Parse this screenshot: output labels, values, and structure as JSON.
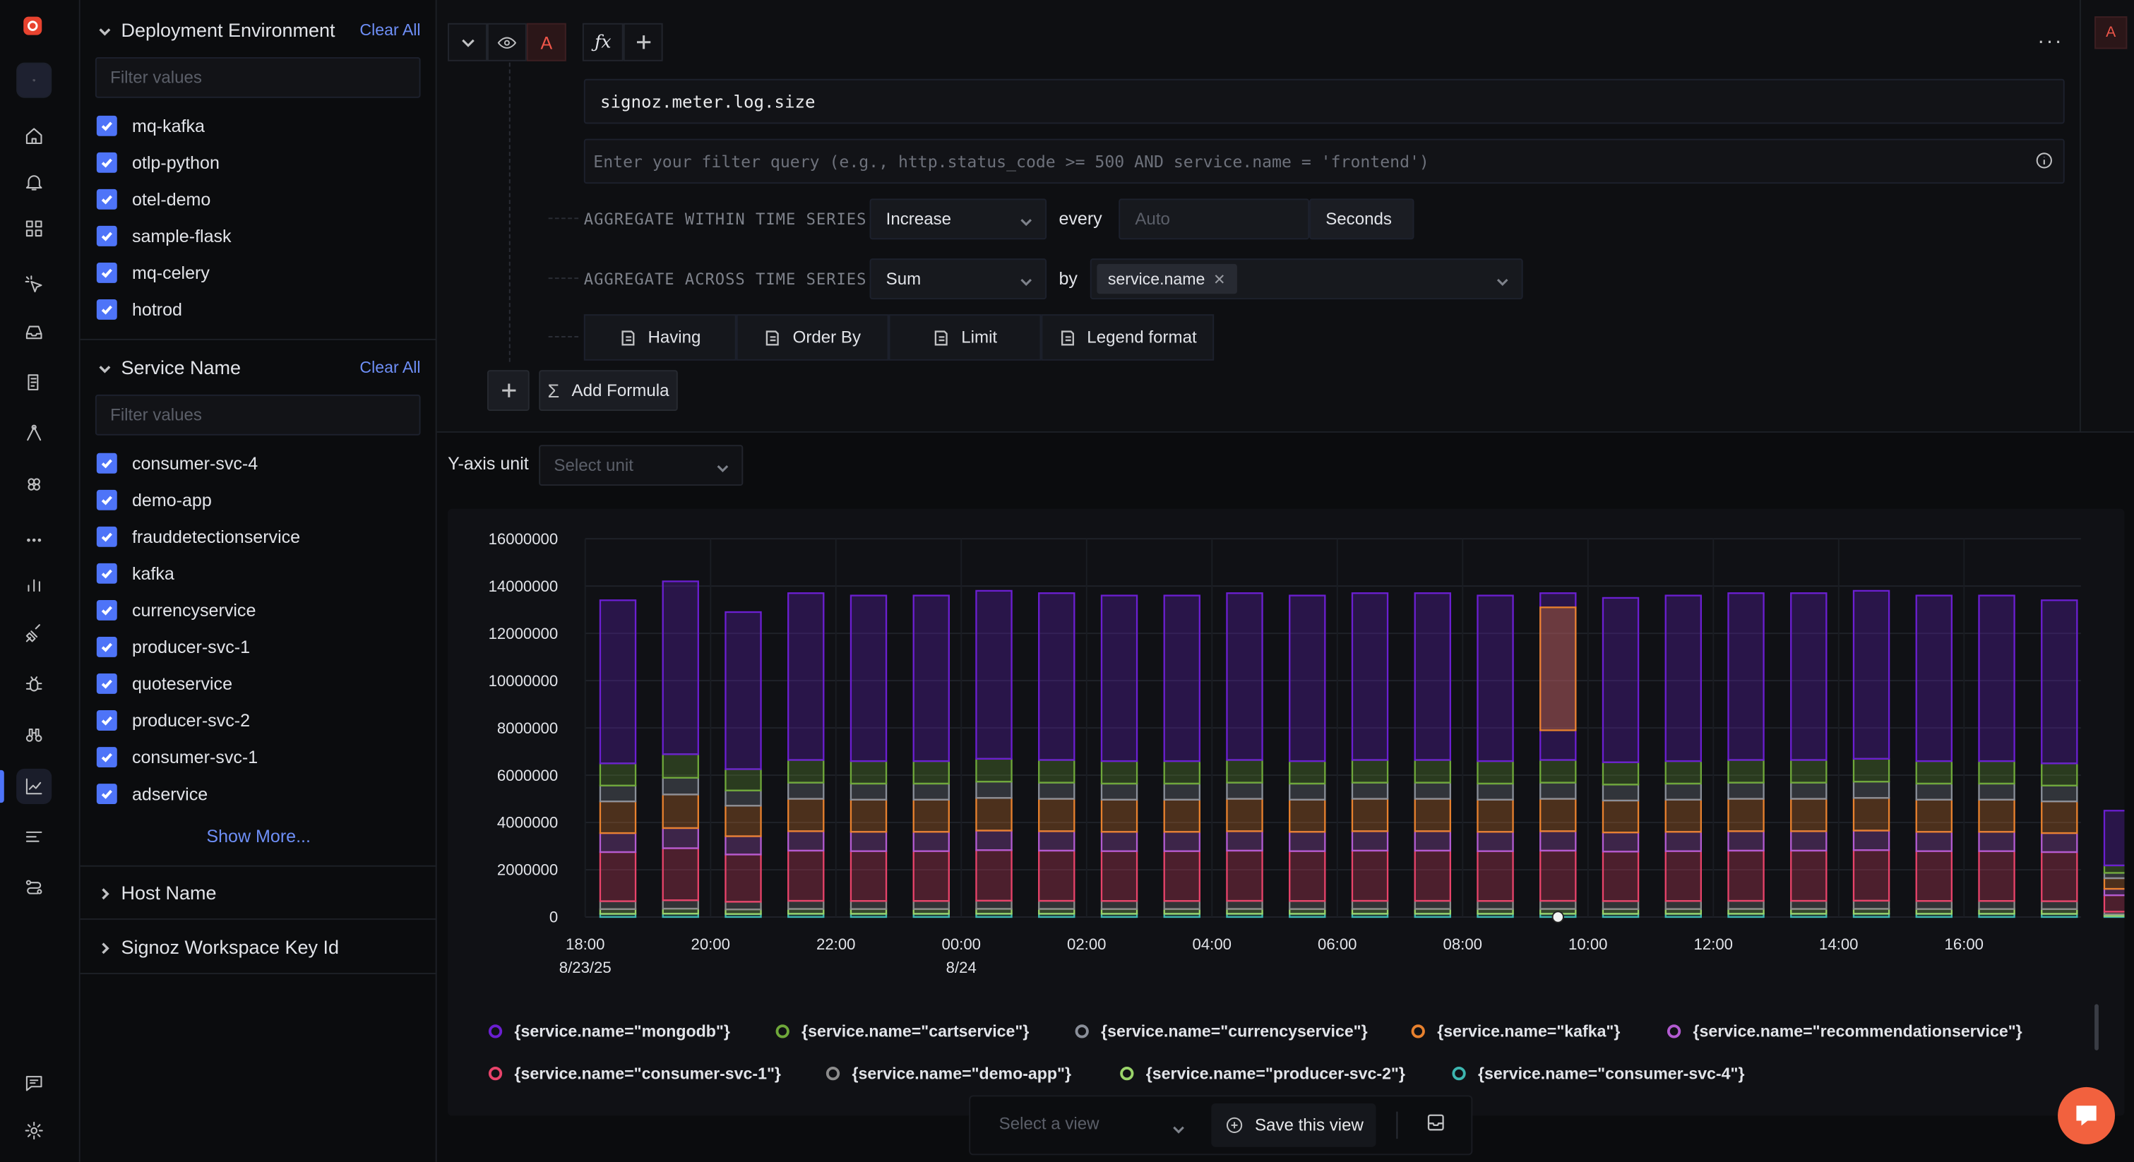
{
  "nav": {
    "items": [
      "cube-icon",
      "home-icon",
      "bell-icon",
      "grid-icon",
      "pointer-icon",
      "inbox-icon",
      "logs-icon",
      "route-icon",
      "hexagons-icon",
      "more-icon",
      "bar-chart-icon",
      "plug-icon",
      "bug-icon",
      "binoculars-icon",
      "chart-icon",
      "list-icon",
      "flow-icon"
    ],
    "bottom": [
      "chat-icon",
      "gear-icon"
    ]
  },
  "filters": {
    "deployment": {
      "title": "Deployment Environment",
      "clear": "Clear All",
      "placeholder": "Filter values",
      "items": [
        "mq-kafka",
        "otlp-python",
        "otel-demo",
        "sample-flask",
        "mq-celery",
        "hotrod"
      ]
    },
    "service": {
      "title": "Service Name",
      "clear": "Clear All",
      "placeholder": "Filter values",
      "items": [
        "consumer-svc-4",
        "demo-app",
        "frauddetectionservice",
        "kafka",
        "currencyservice",
        "producer-svc-1",
        "quoteservice",
        "producer-svc-2",
        "consumer-svc-1",
        "adservice"
      ],
      "show_more": "Show More..."
    },
    "host": {
      "title": "Host Name"
    },
    "workspace": {
      "title": "Signoz Workspace Key Id"
    }
  },
  "query": {
    "label": "A",
    "corner_label": "A",
    "metric": "signoz.meter.log.size",
    "filter_placeholder": "Enter your filter query (e.g., http.status_code >= 500 AND service.name = 'frontend')",
    "agg_within_label": "AGGREGATE WITHIN TIME SERIES",
    "agg_within_value": "Increase",
    "every_label": "every",
    "every_placeholder": "Auto",
    "every_unit": "Seconds",
    "agg_across_label": "AGGREGATE ACROSS TIME SERIES",
    "agg_across_value": "Sum",
    "by_label": "by",
    "group_by_tag": "service.name",
    "having": "Having",
    "order_by": "Order By",
    "limit": "Limit",
    "legend_format": "Legend format",
    "add_formula": "Add Formula"
  },
  "yaxis": {
    "label": "Y-axis unit",
    "placeholder": "Select unit"
  },
  "view": {
    "select_placeholder": "Select a view",
    "save": "Save this view"
  },
  "chart_data": {
    "type": "bar",
    "stacked": true,
    "ylim": [
      0,
      16000000
    ],
    "yticks": [
      "16000000",
      "14000000",
      "12000000",
      "10000000",
      "8000000",
      "6000000",
      "4000000",
      "2000000",
      "0"
    ],
    "xticks": [
      {
        "label": "18:00",
        "sub": "8/23/25"
      },
      {
        "label": "20:00",
        "sub": ""
      },
      {
        "label": "22:00",
        "sub": ""
      },
      {
        "label": "00:00",
        "sub": "8/24"
      },
      {
        "label": "02:00",
        "sub": ""
      },
      {
        "label": "04:00",
        "sub": ""
      },
      {
        "label": "06:00",
        "sub": ""
      },
      {
        "label": "08:00",
        "sub": ""
      },
      {
        "label": "10:00",
        "sub": ""
      },
      {
        "label": "12:00",
        "sub": ""
      },
      {
        "label": "14:00",
        "sub": ""
      },
      {
        "label": "16:00",
        "sub": ""
      }
    ],
    "totals": [
      13400000,
      14200000,
      12900000,
      13700000,
      13600000,
      13600000,
      13800000,
      13700000,
      13600000,
      13600000,
      13700000,
      13600000,
      13700000,
      13700000,
      13600000,
      13700000,
      13500000,
      13600000,
      13700000,
      13700000,
      13800000,
      13600000,
      13600000,
      13400000,
      4500000
    ],
    "series": [
      {
        "name": "{service.name=\"mongodb\"}",
        "color": "#6b1fd1"
      },
      {
        "name": "{service.name=\"cartservice\"}",
        "color": "#6fa83a"
      },
      {
        "name": "{service.name=\"currencyservice\"}",
        "color": "#8a8f99"
      },
      {
        "name": "{service.name=\"kafka\"}",
        "color": "#e8812e"
      },
      {
        "name": "{service.name=\"recommendationservice\"}",
        "color": "#b35bd1"
      },
      {
        "name": "{service.name=\"consumer-svc-1\"}",
        "color": "#e8436a"
      },
      {
        "name": "{service.name=\"demo-app\"}",
        "color": "#8c8c8c"
      },
      {
        "name": "{service.name=\"producer-svc-2\"}",
        "color": "#9ad46a"
      },
      {
        "name": "{service.name=\"consumer-svc-4\"}",
        "color": "#3db6b0"
      }
    ],
    "colors": {
      "mongodb": "#6b1fd1",
      "cartservice": "#6fa83a",
      "currencyservice": "#8a8f99",
      "kafka": "#e8812e",
      "recommendationservice": "#b35bd1",
      "consumer-svc-1": "#e8436a",
      "demo-app": "#8c8c8c",
      "producer-svc-2": "#9ad46a",
      "consumer-svc-4": "#3db6b0"
    }
  }
}
